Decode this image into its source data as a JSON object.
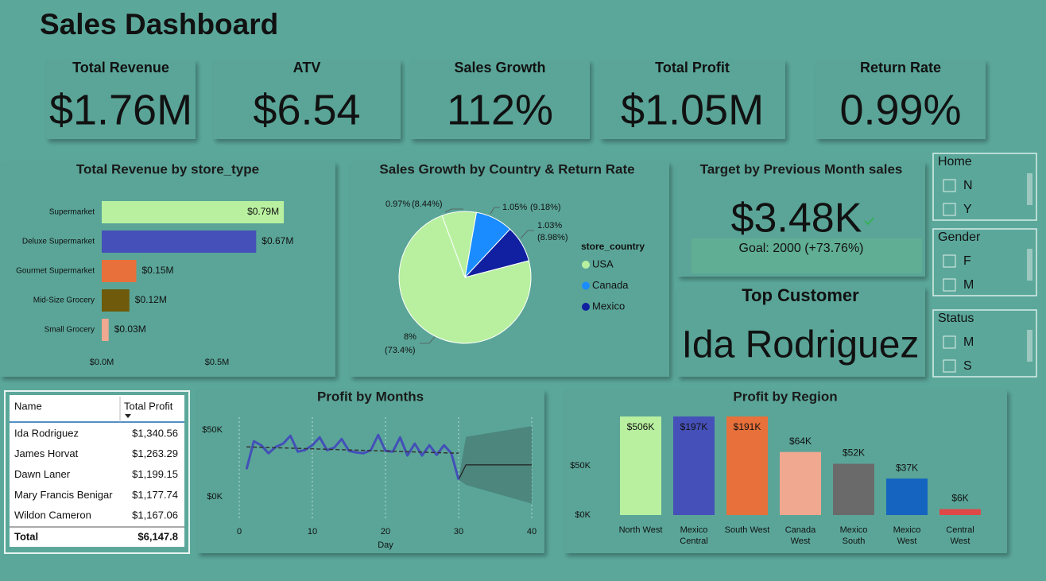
{
  "title": "Sales Dashboard",
  "cards": [
    {
      "label": "Total Revenue",
      "value": "$1.76M"
    },
    {
      "label": "ATV",
      "value": "$6.54"
    },
    {
      "label": "Sales Growth",
      "value": "112%"
    },
    {
      "label": "Total Profit",
      "value": "$1.05M"
    },
    {
      "label": "Return Rate",
      "value": "0.99%"
    }
  ],
  "kpi": {
    "title": "Target by Previous Month sales",
    "value": "$3.48K",
    "goal": "Goal: 2000 (+73.76%)"
  },
  "top_customer": {
    "title": "Top Customer",
    "name": "Ida Rodriguez"
  },
  "slicers": [
    {
      "title": "Home",
      "options": [
        "N",
        "Y"
      ]
    },
    {
      "title": "Gender",
      "options": [
        "F",
        "M"
      ]
    },
    {
      "title": "Status",
      "options": [
        "M",
        "S"
      ]
    }
  ],
  "table": {
    "columns": [
      "Name",
      "Total Profit"
    ],
    "rows": [
      [
        "Ida Rodriguez",
        "$1,340.56"
      ],
      [
        "James Horvat",
        "$1,263.29"
      ],
      [
        "Dawn Laner",
        "$1,199.15"
      ],
      [
        "Mary Francis Benigar",
        "$1,177.74"
      ],
      [
        "Wildon Cameron",
        "$1,167.06"
      ]
    ],
    "total": [
      "Total",
      "$6,147.8"
    ]
  },
  "chart_data": [
    {
      "type": "hbar",
      "title": "Total Revenue by store_type",
      "categories": [
        "Supermarket",
        "Deluxe Supermarket",
        "Gourmet Supermarket",
        "Mid-Size Grocery",
        "Small Grocery"
      ],
      "values": [
        790000,
        670000,
        150000,
        120000,
        30000
      ],
      "value_labels": [
        "$0.79M",
        "$0.67M",
        "$0.15M",
        "$0.12M",
        "$0.03M"
      ],
      "colors": [
        "#b8f0a0",
        "#4550b8",
        "#e8703a",
        "#6e5a0a",
        "#f0a890"
      ],
      "xlim": [
        0,
        1000000
      ],
      "xticks": [
        {
          "value": 0,
          "label": "$0.0M"
        },
        {
          "value": 500000,
          "label": "$0.5M"
        }
      ]
    },
    {
      "type": "pie",
      "title": "Sales Growth by Country & Return Rate",
      "legend_title": "store_country",
      "categories": [
        "Canada",
        "Mexico",
        "USA",
        null
      ],
      "values": [
        9.18,
        8.98,
        73.4,
        8.44
      ],
      "value_labels": [
        "(9.18%)",
        "(8.98%)",
        "(73.4%)",
        "(8.44%)"
      ],
      "return_rate_labels": [
        "1.05%",
        "1.03%",
        "8%",
        "0.97%"
      ],
      "colors": [
        "#1a8cff",
        "#1020a0",
        "#b8f0a0",
        "#b8f0a0"
      ]
    },
    {
      "type": "line",
      "title": "Profit by Months",
      "xlabel": "Day",
      "series": [
        {
          "color": "#4350b8",
          "x": [
            1,
            2,
            3,
            4,
            5,
            6,
            7,
            8,
            9,
            10,
            11,
            12,
            13,
            14,
            15,
            16,
            17,
            18,
            19,
            20,
            21,
            22,
            23,
            24,
            25,
            26,
            27,
            28,
            29,
            30
          ],
          "values": [
            20800,
            41700,
            38700,
            32700,
            37500,
            39900,
            45800,
            33900,
            35100,
            38700,
            44600,
            35000,
            36900,
            43400,
            34500,
            33300,
            32700,
            35000,
            46400,
            34500,
            33900,
            44600,
            31000,
            39900,
            31000,
            38700,
            31500,
            38700,
            32700,
            13000
          ]
        }
      ],
      "trend": {
        "color": "#333333",
        "x": [
          1,
          30
        ],
        "values": [
          37500,
          32700
        ]
      },
      "forecast": {
        "color": "#222222",
        "band_color": "#4a8078",
        "x": [
          30,
          31,
          40
        ],
        "values": [
          13000,
          24000,
          24000
        ],
        "upper": [
          13000,
          45000,
          53000
        ],
        "lower": [
          13000,
          9000,
          -5000
        ]
      },
      "xlim": [
        0,
        40
      ],
      "xticks": [
        0,
        10,
        20,
        30,
        40
      ],
      "ylim": [
        -15000,
        60000
      ],
      "yticks": [
        {
          "value": 0,
          "label": "$0K"
        },
        {
          "value": 50000,
          "label": "$50K"
        }
      ]
    },
    {
      "type": "bar",
      "title": "Profit by Region",
      "categories": [
        "North West",
        "Mexico Central",
        "South West",
        "Canada West",
        "Mexico South",
        "Mexico West",
        "Central West"
      ],
      "values": [
        506000,
        197000,
        191000,
        64000,
        52000,
        37000,
        6000
      ],
      "value_labels": [
        "$506K",
        "$197K",
        "$191K",
        "$64K",
        "$52K",
        "$37K",
        "$6K"
      ],
      "colors": [
        "#b8f0a0",
        "#4550b8",
        "#e8703a",
        "#f0a890",
        "#6a6a6a",
        "#1464c0",
        "#e04848"
      ],
      "ylim": [
        0,
        100000
      ],
      "yticks": [
        {
          "value": 0,
          "label": "$0K"
        },
        {
          "value": 50000,
          "label": "$50K"
        }
      ]
    }
  ]
}
